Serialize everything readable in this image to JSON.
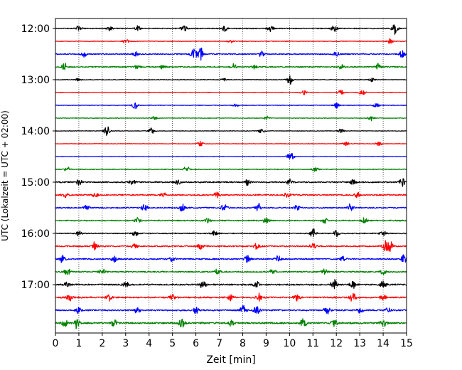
{
  "chart_data": {
    "type": "line",
    "title": "",
    "xlabel": "Zeit  [min]",
    "ylabel": "UTC (Lokalzeit = UTC + 02:00)",
    "xlim": [
      0,
      15
    ],
    "x_ticks": [
      "0",
      "1",
      "2",
      "3",
      "4",
      "5",
      "6",
      "7",
      "8",
      "9",
      "10",
      "11",
      "12",
      "13",
      "14",
      "15"
    ],
    "y_ticks": [
      "12:00",
      "13:00",
      "14:00",
      "15:00",
      "16:00",
      "17:00"
    ],
    "trace_interval_minutes": 15,
    "first_trace": "12:00",
    "trace_colors": [
      "#000000",
      "#ff0000",
      "#0000ff",
      "#008000"
    ],
    "grid_x": true,
    "traces": [
      {
        "start": "12:00",
        "amp": 0.6,
        "events": [
          [
            1.0,
            1.2
          ],
          [
            2.3,
            0.9
          ],
          [
            3.5,
            1.0
          ],
          [
            5.5,
            1.3
          ],
          [
            7.2,
            1.5
          ],
          [
            9.2,
            1.3
          ],
          [
            11.9,
            1.6
          ],
          [
            14.5,
            2.2
          ]
        ]
      },
      {
        "start": "12:15",
        "amp": 0.4,
        "events": [
          [
            3.0,
            0.8
          ],
          [
            7.5,
            0.7
          ],
          [
            14.3,
            1.4
          ]
        ]
      },
      {
        "start": "12:30",
        "amp": 0.7,
        "events": [
          [
            1.2,
            1.1
          ],
          [
            3.4,
            0.9
          ],
          [
            5.9,
            2.4
          ],
          [
            6.2,
            2.8
          ],
          [
            8.8,
            1.0
          ],
          [
            12.0,
            1.0
          ],
          [
            14.8,
            1.6
          ]
        ]
      },
      {
        "start": "12:45",
        "amp": 0.7,
        "events": [
          [
            0.4,
            1.5
          ],
          [
            3.5,
            1.0
          ],
          [
            4.6,
            0.9
          ],
          [
            7.6,
            1.0
          ],
          [
            8.5,
            0.9
          ],
          [
            12.2,
            1.0
          ],
          [
            13.8,
            1.2
          ]
        ]
      },
      {
        "start": "13:00",
        "amp": 0.4,
        "events": [
          [
            1.0,
            0.7
          ],
          [
            7.2,
            0.9
          ],
          [
            10.0,
            2.2
          ],
          [
            13.5,
            1.0
          ]
        ]
      },
      {
        "start": "13:15",
        "amp": 0.4,
        "events": [
          [
            10.6,
            1.0
          ],
          [
            12.2,
            1.0
          ],
          [
            13.1,
            1.2
          ]
        ]
      },
      {
        "start": "13:30",
        "amp": 0.4,
        "events": [
          [
            3.4,
            1.6
          ],
          [
            7.7,
            0.7
          ],
          [
            12.0,
            1.1
          ],
          [
            13.7,
            1.1
          ]
        ]
      },
      {
        "start": "13:45",
        "amp": 0.35,
        "events": [
          [
            4.2,
            0.8
          ],
          [
            9.0,
            0.8
          ],
          [
            13.5,
            1.0
          ]
        ]
      },
      {
        "start": "14:00",
        "amp": 0.35,
        "events": [
          [
            2.2,
            2.0
          ],
          [
            4.1,
            1.2
          ],
          [
            8.8,
            1.0
          ],
          [
            12.2,
            0.9
          ]
        ]
      },
      {
        "start": "14:15",
        "amp": 0.35,
        "events": [
          [
            6.2,
            1.0
          ],
          [
            12.4,
            0.9
          ],
          [
            13.8,
            1.0
          ]
        ]
      },
      {
        "start": "14:30",
        "amp": 0.3,
        "events": [
          [
            10.0,
            1.0
          ],
          [
            10.1,
            0.9
          ]
        ]
      },
      {
        "start": "14:45",
        "amp": 0.5,
        "events": [
          [
            0.5,
            1.0
          ],
          [
            5.6,
            1.1
          ],
          [
            11.1,
            1.0
          ]
        ]
      },
      {
        "start": "15:00",
        "amp": 0.8,
        "events": [
          [
            1.0,
            1.5
          ],
          [
            3.3,
            1.1
          ],
          [
            5.2,
            1.2
          ],
          [
            8.2,
            1.1
          ],
          [
            10.0,
            1.2
          ],
          [
            12.7,
            1.0
          ],
          [
            14.8,
            1.9
          ]
        ]
      },
      {
        "start": "15:15",
        "amp": 0.8,
        "events": [
          [
            0.4,
            1.0
          ],
          [
            1.7,
            1.0
          ],
          [
            4.6,
            1.1
          ],
          [
            6.9,
            1.1
          ],
          [
            9.9,
            1.1
          ],
          [
            12.9,
            1.3
          ]
        ]
      },
      {
        "start": "15:30",
        "amp": 0.8,
        "events": [
          [
            1.3,
            1.2
          ],
          [
            3.8,
            1.4
          ],
          [
            5.4,
            1.6
          ],
          [
            7.2,
            1.8
          ],
          [
            8.7,
            1.7
          ],
          [
            10.3,
            1.1
          ],
          [
            12.6,
            1.4
          ]
        ]
      },
      {
        "start": "15:45",
        "amp": 0.7,
        "events": [
          [
            3.5,
            1.0
          ],
          [
            6.5,
            1.0
          ],
          [
            9.0,
            1.1
          ],
          [
            11.5,
            1.0
          ],
          [
            13.2,
            1.0
          ]
        ]
      },
      {
        "start": "16:00",
        "amp": 0.6,
        "events": [
          [
            1.0,
            1.0
          ],
          [
            3.4,
            1.0
          ],
          [
            6.8,
            1.0
          ],
          [
            11.0,
            1.8
          ],
          [
            12.0,
            1.5
          ],
          [
            14.0,
            1.2
          ]
        ]
      },
      {
        "start": "16:15",
        "amp": 0.8,
        "events": [
          [
            1.7,
            1.9
          ],
          [
            3.4,
            1.1
          ],
          [
            6.2,
            1.2
          ],
          [
            8.6,
            1.1
          ],
          [
            11.0,
            1.1
          ],
          [
            14.1,
            2.4
          ],
          [
            14.3,
            2.0
          ]
        ]
      },
      {
        "start": "16:30",
        "amp": 0.8,
        "events": [
          [
            0.3,
            1.7
          ],
          [
            2.5,
            1.2
          ],
          [
            5.0,
            1.1
          ],
          [
            8.2,
            1.5
          ],
          [
            9.5,
            1.2
          ],
          [
            12.3,
            1.1
          ],
          [
            14.9,
            2.1
          ]
        ]
      },
      {
        "start": "16:45",
        "amp": 0.8,
        "events": [
          [
            0.5,
            1.5
          ],
          [
            2.0,
            1.2
          ],
          [
            6.9,
            1.3
          ],
          [
            9.3,
            1.2
          ],
          [
            11.5,
            1.0
          ],
          [
            14.0,
            1.2
          ]
        ]
      },
      {
        "start": "17:00",
        "amp": 0.9,
        "events": [
          [
            0.5,
            1.1
          ],
          [
            3.0,
            1.2
          ],
          [
            6.3,
            1.5
          ],
          [
            8.6,
            1.4
          ],
          [
            11.9,
            1.9
          ],
          [
            12.7,
            1.4
          ],
          [
            14.0,
            1.3
          ]
        ]
      },
      {
        "start": "17:15",
        "amp": 0.9,
        "events": [
          [
            0.6,
            1.5
          ],
          [
            2.3,
            1.1
          ],
          [
            5.0,
            1.2
          ],
          [
            7.5,
            1.5
          ],
          [
            8.7,
            1.7
          ],
          [
            10.3,
            1.3
          ],
          [
            12.7,
            1.9
          ],
          [
            14.0,
            1.4
          ]
        ]
      },
      {
        "start": "17:30",
        "amp": 0.9,
        "events": [
          [
            1.0,
            1.4
          ],
          [
            3.5,
            1.2
          ],
          [
            6.0,
            1.2
          ],
          [
            8.0,
            1.9
          ],
          [
            8.6,
            1.7
          ],
          [
            11.6,
            1.6
          ],
          [
            13.0,
            1.2
          ],
          [
            14.2,
            1.1
          ]
        ]
      },
      {
        "start": "17:45",
        "amp": 1.0,
        "events": [
          [
            0.4,
            1.6
          ],
          [
            0.9,
            2.0
          ],
          [
            2.5,
            1.3
          ],
          [
            5.4,
            1.6
          ],
          [
            7.5,
            1.2
          ],
          [
            10.6,
            1.7
          ],
          [
            11.9,
            1.5
          ],
          [
            14.0,
            1.8
          ]
        ]
      }
    ]
  }
}
